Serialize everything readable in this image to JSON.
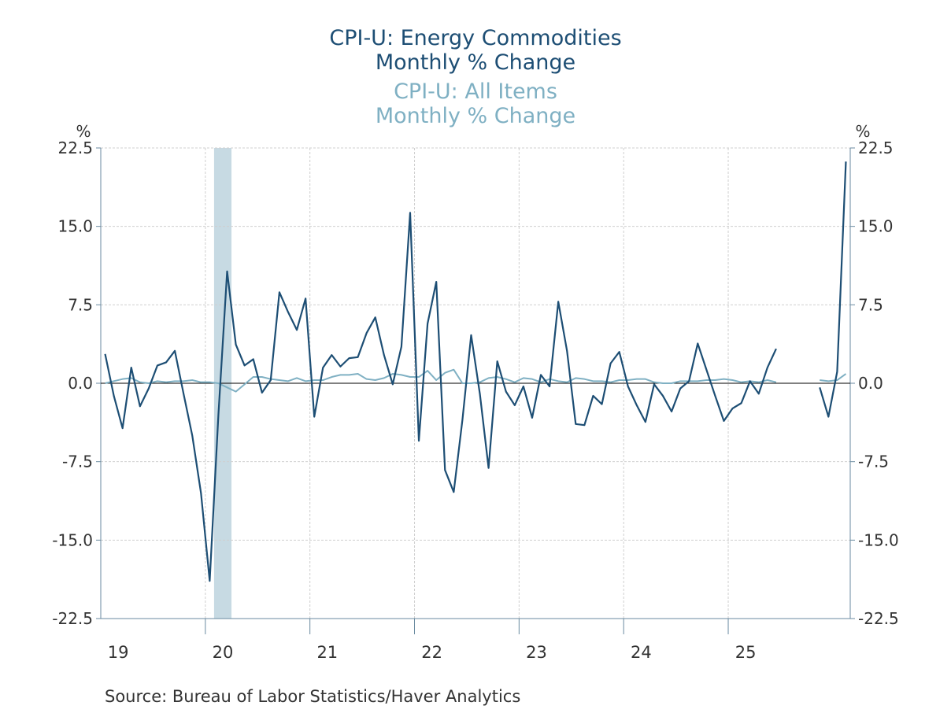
{
  "titles": {
    "series1_line1": "CPI-U: Energy Commodities",
    "series1_line2": "Monthly % Change",
    "series2_line1": "CPI-U: All Items",
    "series2_line2": "Monthly % Change"
  },
  "source": "Source:  Bureau of Labor Statistics/Haver Analytics",
  "colors": {
    "energy": "#1d4e74",
    "all_items": "#7fb0c3",
    "recession": "#c7dae3",
    "grid": "#cfcfcf"
  },
  "chart_data": {
    "type": "line",
    "frequency": "monthly",
    "start": "2019-01",
    "end": "2025-12",
    "yaxis_left": {
      "unit": "%",
      "ylim": [
        -22.5,
        22.5
      ],
      "ticks": [
        22.5,
        15.0,
        7.5,
        0.0,
        -7.5,
        -15.0,
        -22.5
      ],
      "tick_labels": [
        "22.5",
        "15.0",
        "7.5",
        "0.0",
        "-7.5",
        "-15.0",
        "-22.5"
      ]
    },
    "yaxis_right": {
      "unit": "%",
      "ylim": [
        -22.5,
        22.5
      ],
      "ticks": [
        22.5,
        15.0,
        7.5,
        0.0,
        -7.5,
        -15.0,
        -22.5
      ],
      "tick_labels": [
        "22.5",
        "15.0",
        "7.5",
        "0.0",
        "-7.5",
        "-15.0",
        "-22.5"
      ]
    },
    "x_tick_labels": [
      "19",
      "20",
      "21",
      "22",
      "23",
      "24",
      "25"
    ],
    "recession": {
      "start_month_index": 13,
      "end_month_index": 15
    },
    "series": [
      {
        "name": "CPI-U: Energy Commodities Monthly % Change",
        "color": "#1d4e74",
        "values": [
          2.8,
          -1.2,
          -4.3,
          1.5,
          -2.2,
          -0.5,
          1.7,
          2.0,
          3.1,
          -1.0,
          -5.0,
          -10.5,
          -18.9,
          -3.0,
          10.7,
          3.7,
          1.7,
          2.3,
          -0.9,
          0.3,
          8.7,
          6.8,
          5.1,
          8.1,
          -3.2,
          1.5,
          2.7,
          1.6,
          2.4,
          2.5,
          4.8,
          6.3,
          2.7,
          -0.1,
          3.5,
          16.3,
          -5.5,
          5.7,
          9.7,
          -8.3,
          -10.4,
          -3.5,
          4.6,
          -1.0,
          -8.1,
          2.1,
          -0.8,
          -2.1,
          -0.3,
          -3.3,
          0.8,
          -0.3,
          7.8,
          3.1,
          -3.9,
          -4.0,
          -1.2,
          -2.0,
          1.9,
          3.0,
          -0.3,
          -2.1,
          -3.7,
          -0.1,
          -1.2,
          -2.7,
          -0.5,
          0.2,
          3.8,
          1.3,
          -1.2,
          -3.6,
          -2.4,
          -1.9,
          0.2,
          -1.0,
          1.5,
          3.3,
          null,
          null,
          null,
          null,
          -0.4,
          -3.2,
          1.1,
          21.2
        ]
      },
      {
        "name": "CPI-U: All Items Monthly % Change",
        "color": "#7fb0c3",
        "values": [
          0.0,
          0.2,
          0.4,
          0.5,
          0.1,
          0.0,
          0.2,
          0.1,
          0.2,
          0.2,
          0.3,
          0.1,
          0.1,
          0.0,
          -0.4,
          -0.8,
          -0.1,
          0.6,
          0.6,
          0.4,
          0.3,
          0.2,
          0.5,
          0.2,
          0.3,
          0.3,
          0.6,
          0.8,
          0.8,
          0.9,
          0.4,
          0.3,
          0.5,
          0.9,
          0.8,
          0.6,
          0.6,
          1.2,
          0.3,
          1.0,
          1.3,
          0.0,
          0.0,
          0.1,
          0.5,
          0.6,
          0.4,
          0.1,
          0.5,
          0.4,
          0.1,
          0.4,
          0.2,
          0.1,
          0.5,
          0.4,
          0.2,
          0.2,
          0.1,
          0.3,
          0.3,
          0.4,
          0.4,
          0.1,
          0.0,
          0.0,
          0.2,
          0.2,
          0.2,
          0.3,
          0.3,
          0.4,
          0.3,
          0.1,
          0.2,
          0.1,
          0.3,
          0.1,
          null,
          null,
          null,
          null,
          0.3,
          0.2,
          0.3,
          0.9
        ]
      }
    ]
  }
}
